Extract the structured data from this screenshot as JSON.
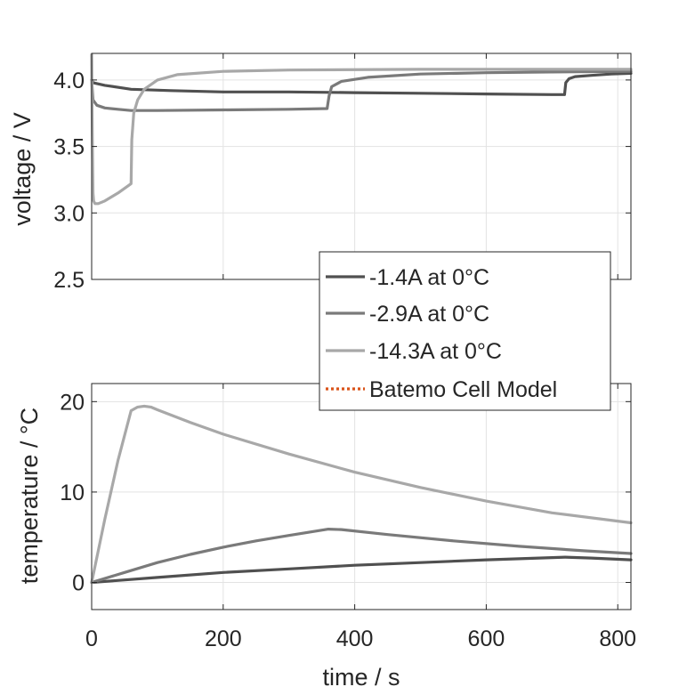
{
  "chart_data": [
    {
      "type": "line",
      "title": "",
      "xlabel": "",
      "ylabel": "voltage / V",
      "xlim": [
        0,
        820
      ],
      "ylim": [
        2.5,
        4.2
      ],
      "xticks": [],
      "yticks": [
        "2.5",
        "3.0",
        "3.5",
        "4.0"
      ],
      "ytick_values": [
        2.5,
        3.0,
        3.5,
        4.0
      ],
      "grid": true,
      "series": [
        {
          "name": "-1.4A at 0°C",
          "color": "#505050",
          "x": [
            0,
            2,
            20,
            60,
            120,
            200,
            300,
            400,
            500,
            600,
            700,
            719,
            721,
            726,
            735,
            760,
            790,
            820
          ],
          "y": [
            4.0,
            3.98,
            3.96,
            3.93,
            3.92,
            3.91,
            3.91,
            3.905,
            3.9,
            3.895,
            3.89,
            3.89,
            3.98,
            4.01,
            4.025,
            4.035,
            4.045,
            4.05
          ]
        },
        {
          "name": "-2.9A at 0°C",
          "color": "#7a7a7a",
          "x": [
            0,
            2,
            8,
            20,
            40,
            60,
            100,
            200,
            300,
            358,
            361,
            365,
            380,
            420,
            500,
            600,
            700,
            820
          ],
          "y": [
            4.0,
            3.85,
            3.81,
            3.79,
            3.78,
            3.77,
            3.77,
            3.775,
            3.78,
            3.785,
            3.88,
            3.95,
            3.99,
            4.02,
            4.045,
            4.055,
            4.06,
            4.065
          ]
        },
        {
          "name": "-14.3A at 0°C",
          "color": "#a8a8a8",
          "x": [
            0,
            1,
            2,
            3,
            5,
            10,
            20,
            40,
            60,
            61,
            64,
            70,
            80,
            100,
            130,
            200,
            300,
            500,
            820
          ],
          "y": [
            4.19,
            3.6,
            3.15,
            3.09,
            3.07,
            3.07,
            3.09,
            3.15,
            3.22,
            3.55,
            3.75,
            3.85,
            3.93,
            4.0,
            4.04,
            4.065,
            4.075,
            4.08,
            4.08
          ]
        }
      ]
    },
    {
      "type": "line",
      "title": "",
      "xlabel": "time / s",
      "ylabel": "temperature / °C",
      "xlim": [
        0,
        820
      ],
      "ylim": [
        -3,
        22
      ],
      "xticks": [
        "0",
        "200",
        "400",
        "600",
        "800"
      ],
      "xtick_values": [
        0,
        200,
        400,
        600,
        800
      ],
      "yticks": [
        "0",
        "10",
        "20"
      ],
      "ytick_values": [
        0,
        10,
        20
      ],
      "grid": true,
      "series": [
        {
          "name": "-1.4A at 0°C",
          "color": "#505050",
          "x": [
            0,
            100,
            200,
            300,
            400,
            500,
            600,
            700,
            720,
            760,
            820
          ],
          "y": [
            0,
            0.55,
            1.1,
            1.5,
            1.9,
            2.2,
            2.5,
            2.75,
            2.8,
            2.7,
            2.5
          ]
        },
        {
          "name": "-2.9A at 0°C",
          "color": "#7a7a7a",
          "x": [
            0,
            50,
            100,
            150,
            200,
            250,
            300,
            360,
            380,
            450,
            550,
            650,
            750,
            820
          ],
          "y": [
            0,
            1.1,
            2.2,
            3.1,
            3.9,
            4.6,
            5.2,
            5.9,
            5.85,
            5.3,
            4.6,
            4.0,
            3.5,
            3.2
          ]
        },
        {
          "name": "-14.3A at 0°C",
          "color": "#a8a8a8",
          "x": [
            0,
            20,
            40,
            60,
            70,
            80,
            90,
            100,
            150,
            200,
            300,
            400,
            500,
            600,
            700,
            820
          ],
          "y": [
            0,
            7,
            13.5,
            19,
            19.4,
            19.5,
            19.4,
            19.1,
            17.7,
            16.4,
            14.2,
            12.2,
            10.5,
            9.0,
            7.7,
            6.6
          ]
        },
        {
          "name": "Batemo Cell Model",
          "color": "#d95319",
          "style": "dotted",
          "x": [],
          "y": []
        }
      ]
    }
  ],
  "legend": {
    "placement": "center-right",
    "entries": [
      {
        "label": "-1.4A at 0°C",
        "color": "#505050",
        "style": "solid"
      },
      {
        "label": "-2.9A at 0°C",
        "color": "#7a7a7a",
        "style": "solid"
      },
      {
        "label": "-14.3A at 0°C",
        "color": "#a8a8a8",
        "style": "solid"
      },
      {
        "label": "Batemo Cell Model",
        "color": "#d95319",
        "style": "dotted"
      }
    ]
  }
}
